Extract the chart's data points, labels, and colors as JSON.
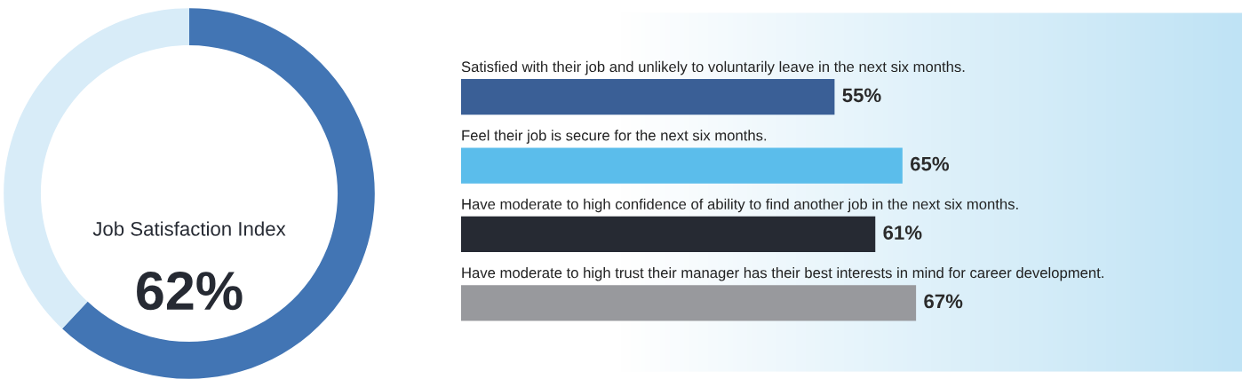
{
  "chart_data": [
    {
      "type": "donut",
      "categories": [
        null,
        null
      ],
      "values": [
        62,
        38
      ],
      "colors": [
        "#4275b4",
        "#d8ecf8"
      ],
      "annotations": [
        "Job Satisfaction Index",
        "62%"
      ]
    },
    {
      "type": "bar",
      "orientation": "horizontal",
      "categories": [
        "Satisfied with their job and unlikely to voluntarily leave in the next six months.",
        "Feel their job is secure for the next six months.",
        "Have moderate to high confidence of ability to find another job in the next six months.",
        "Have moderate to high trust their manager has their best interests in mind for career development."
      ],
      "values": [
        55,
        65,
        61,
        67
      ],
      "colors": [
        "#3a5f96",
        "#5bbdeb",
        "#262a33",
        "#98999d"
      ],
      "data_labels": true,
      "value_labels": [
        "55%",
        "65%",
        "61%",
        "67%"
      ],
      "xlim": [
        0,
        115
      ],
      "tick_labels": false
    }
  ]
}
